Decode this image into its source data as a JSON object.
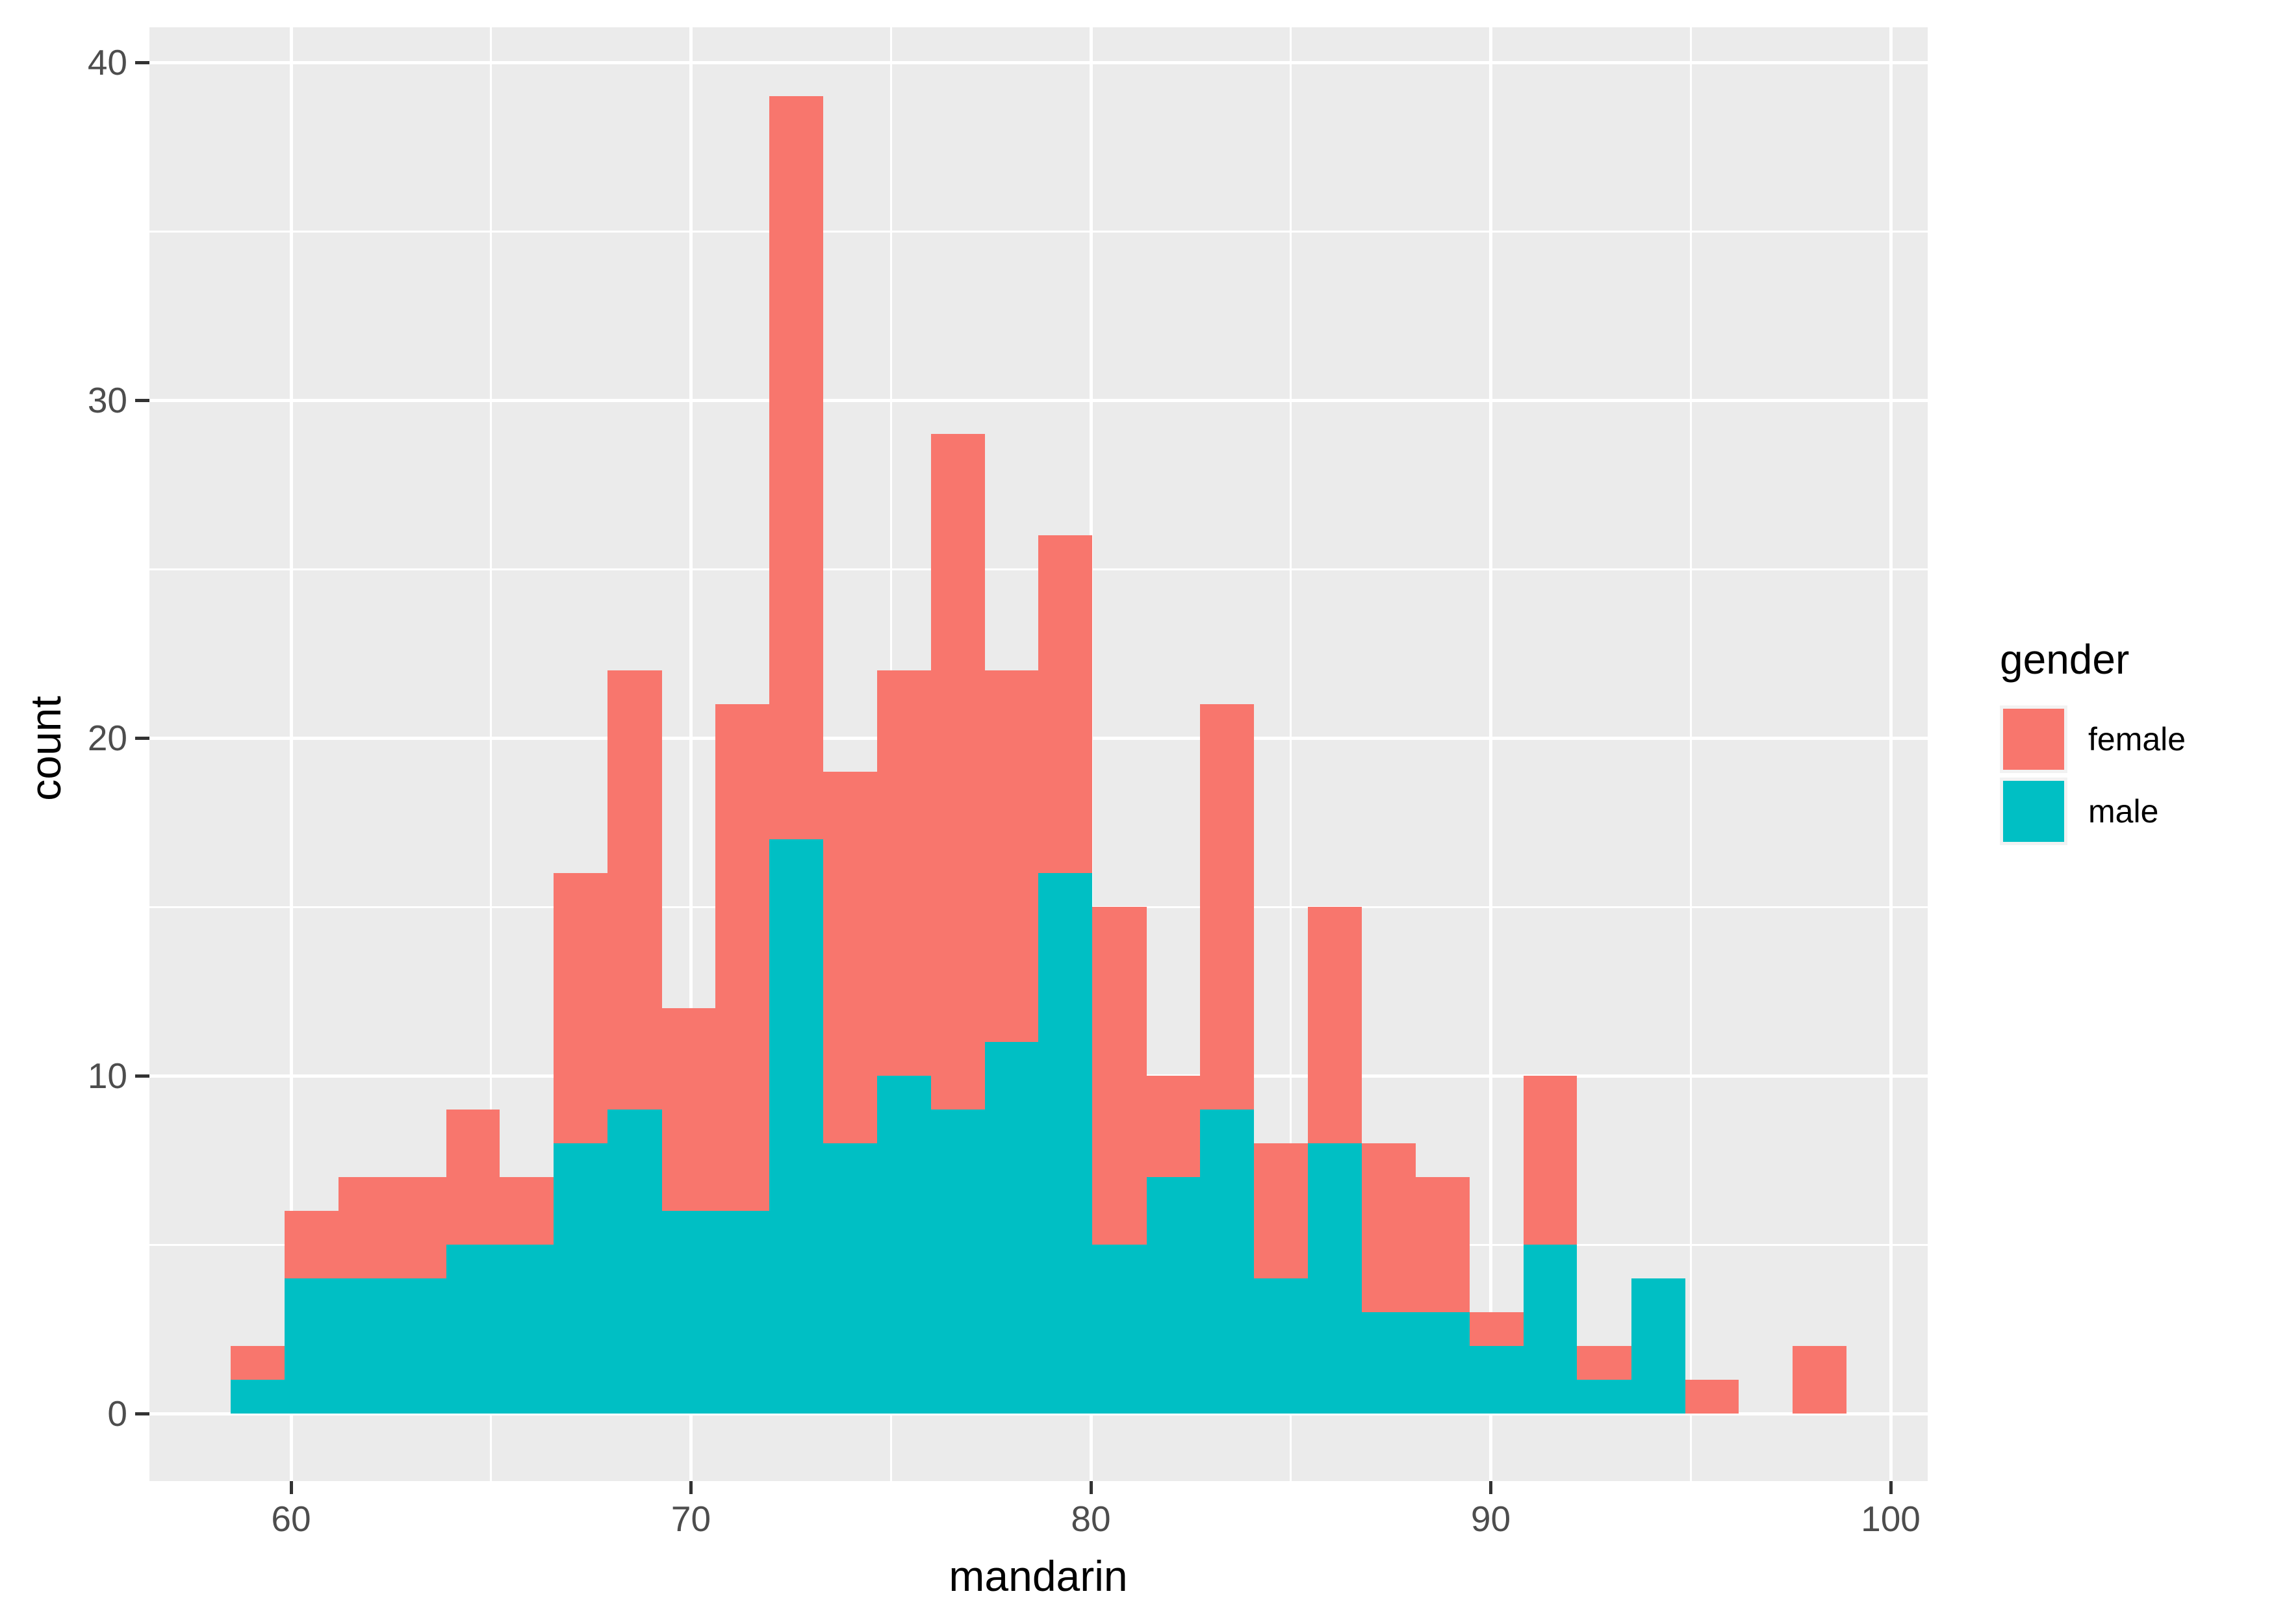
{
  "axis": {
    "x_label": "mandarin",
    "y_label": "count"
  },
  "legend": {
    "title": "gender",
    "items": [
      {
        "label": "female",
        "color": "#F8766D"
      },
      {
        "label": "male",
        "color": "#00BFC4"
      }
    ]
  },
  "colors": {
    "female": "#F8766D",
    "male": "#00BFC4",
    "panel_background": "#EBEBEB",
    "grid": "#FFFFFF",
    "tick_mark": "#333333",
    "tick_label": "#4D4D4D",
    "axis_title": "#000000",
    "legend_key_background": "#F2F2F2"
  },
  "chart_data": {
    "type": "bar",
    "subtype": "stacked-histogram",
    "title": "",
    "xlabel": "mandarin",
    "ylabel": "count",
    "xlim": [
      56.5,
      100.9
    ],
    "ylim": [
      -1.95,
      40.95
    ],
    "x_ticks": [
      60,
      70,
      80,
      90,
      100
    ],
    "y_ticks": [
      0,
      10,
      20,
      30,
      40
    ],
    "x_minor_ticks": [
      65,
      75,
      85,
      95
    ],
    "y_minor_ticks": [
      5,
      15,
      25,
      35
    ],
    "grid": "white major and minor gridlines on grey panel",
    "legend_position": "right",
    "bin_width": 1.347,
    "stack_order_bottom_to_top": [
      "male",
      "female"
    ],
    "series": [
      {
        "name": "male",
        "color": "#00BFC4"
      },
      {
        "name": "female",
        "color": "#F8766D"
      }
    ],
    "bins": [
      {
        "x0": 58.49,
        "x1": 59.84,
        "male": 1,
        "female": 1,
        "total": 2
      },
      {
        "x0": 59.84,
        "x1": 61.18,
        "male": 4,
        "female": 2,
        "total": 6
      },
      {
        "x0": 61.18,
        "x1": 62.53,
        "male": 4,
        "female": 3,
        "total": 7
      },
      {
        "x0": 62.53,
        "x1": 63.88,
        "male": 4,
        "female": 3,
        "total": 7
      },
      {
        "x0": 63.88,
        "x1": 65.22,
        "male": 5,
        "female": 4,
        "total": 9
      },
      {
        "x0": 65.22,
        "x1": 66.57,
        "male": 5,
        "female": 2,
        "total": 7
      },
      {
        "x0": 66.57,
        "x1": 67.92,
        "male": 8,
        "female": 8,
        "total": 16
      },
      {
        "x0": 67.92,
        "x1": 69.27,
        "male": 9,
        "female": 13,
        "total": 22
      },
      {
        "x0": 69.27,
        "x1": 70.61,
        "male": 6,
        "female": 6,
        "total": 12
      },
      {
        "x0": 70.61,
        "x1": 71.96,
        "male": 6,
        "female": 15,
        "total": 21
      },
      {
        "x0": 71.96,
        "x1": 73.31,
        "male": 17,
        "female": 22,
        "total": 39
      },
      {
        "x0": 73.31,
        "x1": 74.65,
        "male": 8,
        "female": 11,
        "total": 19
      },
      {
        "x0": 74.65,
        "x1": 76.0,
        "male": 10,
        "female": 12,
        "total": 22
      },
      {
        "x0": 76.0,
        "x1": 77.35,
        "male": 9,
        "female": 20,
        "total": 29
      },
      {
        "x0": 77.35,
        "x1": 78.69,
        "male": 11,
        "female": 11,
        "total": 22
      },
      {
        "x0": 78.69,
        "x1": 80.04,
        "male": 16,
        "female": 10,
        "total": 26
      },
      {
        "x0": 80.04,
        "x1": 81.39,
        "male": 5,
        "female": 10,
        "total": 15
      },
      {
        "x0": 81.39,
        "x1": 82.73,
        "male": 7,
        "female": 3,
        "total": 10
      },
      {
        "x0": 82.73,
        "x1": 84.08,
        "male": 9,
        "female": 12,
        "total": 21
      },
      {
        "x0": 84.08,
        "x1": 85.43,
        "male": 4,
        "female": 4,
        "total": 8
      },
      {
        "x0": 85.43,
        "x1": 86.78,
        "male": 8,
        "female": 7,
        "total": 15
      },
      {
        "x0": 86.78,
        "x1": 88.12,
        "male": 3,
        "female": 5,
        "total": 8
      },
      {
        "x0": 88.12,
        "x1": 89.47,
        "male": 3,
        "female": 4,
        "total": 7
      },
      {
        "x0": 89.47,
        "x1": 90.82,
        "male": 2,
        "female": 1,
        "total": 3
      },
      {
        "x0": 90.82,
        "x1": 92.16,
        "male": 5,
        "female": 5,
        "total": 10
      },
      {
        "x0": 92.16,
        "x1": 93.51,
        "male": 1,
        "female": 1,
        "total": 2
      },
      {
        "x0": 93.51,
        "x1": 94.86,
        "male": 4,
        "female": 0,
        "total": 4
      },
      {
        "x0": 94.86,
        "x1": 96.2,
        "male": 0,
        "female": 1,
        "total": 1
      },
      {
        "x0": 96.2,
        "x1": 97.55,
        "male": 0,
        "female": 0,
        "total": 0
      },
      {
        "x0": 97.55,
        "x1": 98.9,
        "male": 0,
        "female": 2,
        "total": 2
      }
    ]
  }
}
